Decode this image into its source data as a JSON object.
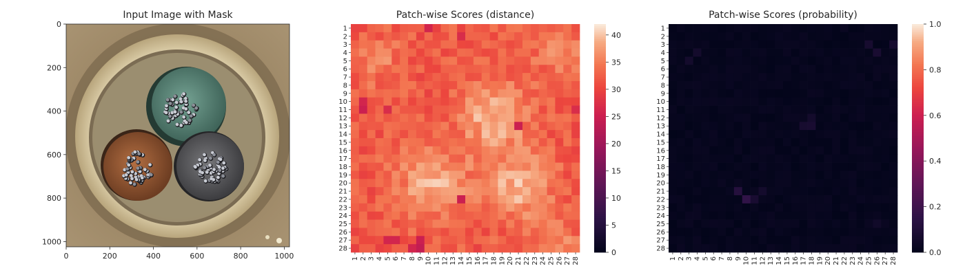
{
  "chart_data": [
    {
      "type": "image",
      "title": "Input Image with Mask",
      "xlim": [
        0,
        1024
      ],
      "ylim": [
        1024,
        0
      ],
      "xticks": [
        0,
        200,
        400,
        600,
        800,
        1000
      ],
      "yticks": [
        0,
        200,
        400,
        600,
        800,
        1000
      ],
      "grid": false,
      "image_content": "cable cross-section with three insulated conductors",
      "colors": {
        "background": "#a08a66",
        "sheath": "#d9cba5",
        "inner_filler": "#5a4a36",
        "conductor_green": "#5e8a7a",
        "conductor_brown": "#9a5a35",
        "conductor_grey": "#5c5c5e",
        "strands": "#b8b8c0"
      }
    },
    {
      "type": "heatmap",
      "title": "Patch-wise Scores (distance)",
      "rows": 28,
      "cols": 28,
      "x_tick_labels": [
        "1",
        "2",
        "3",
        "4",
        "5",
        "6",
        "7",
        "8",
        "9",
        "10",
        "11",
        "12",
        "13",
        "14",
        "15",
        "16",
        "17",
        "18",
        "19",
        "20",
        "21",
        "22",
        "23",
        "24",
        "25",
        "26",
        "27",
        "28"
      ],
      "y_tick_labels": [
        "1",
        "2",
        "3",
        "4",
        "5",
        "6",
        "7",
        "8",
        "9",
        "10",
        "11",
        "12",
        "13",
        "14",
        "15",
        "16",
        "17",
        "18",
        "19",
        "20",
        "21",
        "22",
        "23",
        "24",
        "25",
        "26",
        "27",
        "28"
      ],
      "colorbar": {
        "min": 0,
        "max": 42,
        "ticks": [
          0,
          5,
          10,
          15,
          20,
          25,
          30,
          35,
          40
        ]
      },
      "colormap": "rocket",
      "baseline": 32,
      "noise": 2.6,
      "blobs": [
        {
          "row": 11,
          "col": 17,
          "r": 3.0,
          "amp": 7
        },
        {
          "row": 19,
          "col": 9.5,
          "r": 2.8,
          "amp": 7
        },
        {
          "row": 19.5,
          "col": 20,
          "r": 2.8,
          "amp": 7
        },
        {
          "row": 4,
          "col": 3,
          "r": 2.2,
          "amp": 3
        },
        {
          "row": 3,
          "col": 25,
          "r": 2.0,
          "amp": 4
        },
        {
          "row": 26,
          "col": 25,
          "r": 1.5,
          "amp": 4
        }
      ],
      "dips": [
        {
          "row": 10,
          "col": 1,
          "v": 25
        },
        {
          "row": 9,
          "col": 1,
          "v": 26
        },
        {
          "row": 21,
          "col": 13,
          "v": 25
        },
        {
          "row": 27,
          "col": 8,
          "v": 24
        },
        {
          "row": 27,
          "col": 7,
          "v": 26
        },
        {
          "row": 26,
          "col": 8,
          "v": 25
        },
        {
          "row": 26,
          "col": 4,
          "v": 26
        },
        {
          "row": 26,
          "col": 5,
          "v": 26
        },
        {
          "row": 0,
          "col": 9,
          "v": 26
        },
        {
          "row": 1,
          "col": 13,
          "v": 27
        },
        {
          "row": 12,
          "col": 20,
          "v": 25
        },
        {
          "row": 10,
          "col": 4,
          "v": 27
        },
        {
          "row": 10,
          "col": 27,
          "v": 27
        }
      ]
    },
    {
      "type": "heatmap",
      "title": "Patch-wise Scores (probability)",
      "rows": 28,
      "cols": 28,
      "x_tick_labels": [
        "1",
        "2",
        "3",
        "4",
        "5",
        "6",
        "7",
        "8",
        "9",
        "10",
        "11",
        "12",
        "13",
        "14",
        "15",
        "16",
        "17",
        "18",
        "19",
        "20",
        "21",
        "22",
        "23",
        "24",
        "25",
        "26",
        "27",
        "28"
      ],
      "y_tick_labels": [
        "1",
        "2",
        "3",
        "4",
        "5",
        "6",
        "7",
        "8",
        "9",
        "10",
        "11",
        "12",
        "13",
        "14",
        "15",
        "16",
        "17",
        "18",
        "19",
        "20",
        "21",
        "22",
        "23",
        "24",
        "25",
        "26",
        "27",
        "28"
      ],
      "colorbar": {
        "min": 0.0,
        "max": 1.0,
        "ticks": [
          0.0,
          0.2,
          0.4,
          0.6,
          0.8,
          1.0
        ]
      },
      "colorbar_tick_labels": [
        "0.0",
        "0.2",
        "0.4",
        "0.6",
        "0.8",
        "1.0"
      ],
      "colormap": "rocket",
      "baseline": 0.0,
      "noise": 0.025,
      "hotspots": [
        {
          "row": 20,
          "col": 8,
          "v": 0.12
        },
        {
          "row": 21,
          "col": 9,
          "v": 0.16
        },
        {
          "row": 21,
          "col": 10,
          "v": 0.08
        },
        {
          "row": 20,
          "col": 11,
          "v": 0.06
        },
        {
          "row": 12,
          "col": 16,
          "v": 0.07
        },
        {
          "row": 12,
          "col": 17,
          "v": 0.08
        },
        {
          "row": 11,
          "col": 17,
          "v": 0.06
        },
        {
          "row": 2,
          "col": 24,
          "v": 0.07
        },
        {
          "row": 3,
          "col": 25,
          "v": 0.08
        },
        {
          "row": 2,
          "col": 27,
          "v": 0.07
        },
        {
          "row": 3,
          "col": 3,
          "v": 0.06
        },
        {
          "row": 4,
          "col": 2,
          "v": 0.06
        },
        {
          "row": 24,
          "col": 25,
          "v": 0.05
        }
      ]
    }
  ]
}
